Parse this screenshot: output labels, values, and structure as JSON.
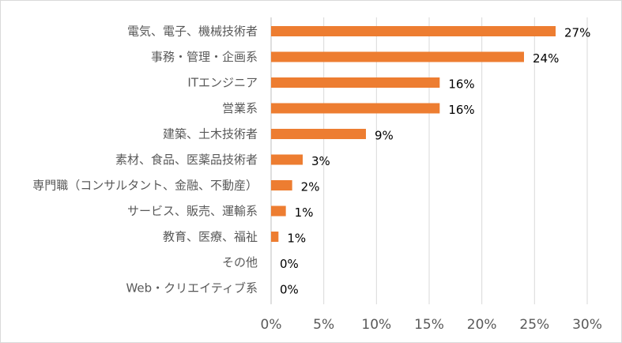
{
  "chart_data": {
    "type": "bar",
    "orientation": "horizontal",
    "title": "",
    "xlabel": "",
    "ylabel": "",
    "xlim": [
      0,
      30
    ],
    "x_ticks": [
      "0%",
      "5%",
      "10%",
      "15%",
      "20%",
      "25%",
      "30%"
    ],
    "grid": true,
    "legend": "none",
    "bar_color": "#ED7D31",
    "gridline_color": "#d9d9d9",
    "categories": [
      "電気、電子、機械技術者",
      "事務・管理・企画系",
      "ITエンジニア",
      "営業系",
      "建築、土木技術者",
      "素材、食品、医薬品技術者",
      "専門職（コンサルタント、金融、不動産）",
      "サービス、販売、運輸系",
      "教育、医療、福祉",
      "その他",
      "Web・クリエイティブ系"
    ],
    "values": [
      27,
      24,
      16,
      16,
      9,
      3,
      2,
      1.4,
      0.7,
      0,
      0
    ],
    "value_labels": [
      "27%",
      "24%",
      "16%",
      "16%",
      "9%",
      "3%",
      "2%",
      "1%",
      "1%",
      "0%",
      "0%"
    ]
  }
}
